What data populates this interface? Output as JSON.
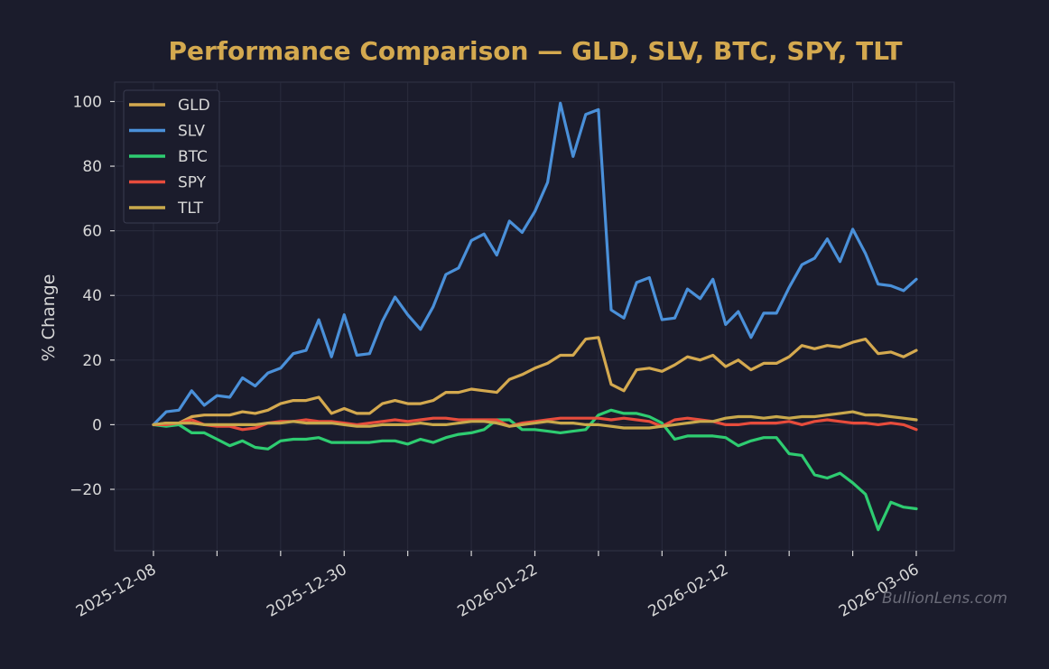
{
  "watermark": "BullionLens.com",
  "chart_data": {
    "type": "line",
    "title": "Performance Comparison — GLD, SLV, BTC, SPY, TLT",
    "xlabel": "",
    "ylabel": "% Change",
    "ylim": [
      -39,
      106
    ],
    "yticks": [
      -20,
      0,
      20,
      40,
      60,
      80,
      100
    ],
    "ytick_labels": [
      "−20",
      "0",
      "20",
      "40",
      "60",
      "80",
      "100"
    ],
    "x_tick_labels": [
      "2025-12-08",
      "2025-12-30",
      "2026-01-22",
      "2026-02-12",
      "2026-03-06"
    ],
    "x_tick_positions": [
      0,
      15,
      30,
      45,
      60
    ],
    "x_minor_tick_positions": [
      5,
      10,
      20,
      25,
      35,
      40,
      50,
      55
    ],
    "grid": true,
    "legend_position": "top-left",
    "x_count": 61,
    "series": [
      {
        "name": "GLD",
        "color": "#d4a94f",
        "values": [
          0,
          0.5,
          0.5,
          2.5,
          3,
          3,
          3,
          4,
          3.5,
          4.5,
          6.5,
          7.5,
          7.5,
          8.5,
          3.5,
          5,
          3.5,
          3.5,
          6.5,
          7.5,
          6.5,
          6.5,
          7.5,
          10,
          10,
          11,
          10.5,
          10,
          14,
          15.5,
          17.5,
          19,
          21.5,
          21.5,
          26.5,
          27,
          12.5,
          10.5,
          17,
          17.5,
          16.5,
          18.5,
          21,
          20,
          21.5,
          18,
          20,
          17,
          19,
          19,
          21,
          24.5,
          23.5,
          24.5,
          24,
          25.5,
          26.5,
          22,
          22.5,
          21,
          23
        ]
      },
      {
        "name": "SLV",
        "color": "#4a90d9",
        "values": [
          0,
          4,
          4.5,
          10.5,
          6,
          9,
          8.5,
          14.5,
          12,
          16,
          17.5,
          22,
          23,
          32.5,
          21,
          34,
          21.5,
          22,
          32,
          39.5,
          34,
          29.5,
          36.5,
          46.5,
          48.5,
          57,
          59,
          52.5,
          63,
          59.5,
          66,
          75,
          99.5,
          83,
          96,
          97.5,
          35.5,
          33,
          44,
          45.5,
          32.5,
          33,
          42,
          39,
          45,
          31,
          35,
          27,
          34.5,
          34.5,
          42.5,
          49.5,
          51.5,
          57.5,
          50.5,
          60.5,
          53,
          43.5,
          43,
          41.5,
          45
        ]
      },
      {
        "name": "BTC",
        "color": "#2ecc71",
        "values": [
          0,
          -0.5,
          0,
          -2.5,
          -2.5,
          -4.5,
          -6.5,
          -5,
          -7,
          -7.5,
          -5,
          -4.5,
          -4.5,
          -4,
          -5.5,
          -5.5,
          -5.5,
          -5.5,
          -5,
          -5,
          -6,
          -4.5,
          -5.5,
          -4,
          -3,
          -2.5,
          -1.5,
          1.5,
          1.5,
          -1.5,
          -1.5,
          -2,
          -2.5,
          -2,
          -1.5,
          3,
          4.5,
          3.5,
          3.5,
          2.5,
          0.5,
          -4.5,
          -3.5,
          -3.5,
          -3.5,
          -4,
          -6.5,
          -5,
          -4,
          -4,
          -9,
          -9.5,
          -15.5,
          -16.5,
          -15,
          -18,
          -21.5,
          -32.5,
          -24,
          -25.5,
          -26
        ]
      },
      {
        "name": "SPY",
        "color": "#e74c3c",
        "values": [
          0,
          0,
          0.5,
          1.5,
          0,
          -0.5,
          -0.5,
          -1.5,
          -1,
          0.5,
          1,
          1,
          1.5,
          1,
          1,
          0.5,
          0,
          0.5,
          1,
          1.5,
          1,
          1.5,
          2,
          2,
          1.5,
          1.5,
          1.5,
          1.5,
          -0.5,
          0.5,
          1,
          1.5,
          2,
          2,
          2,
          2,
          1.5,
          2,
          1.5,
          1,
          -0.5,
          1.5,
          2,
          1.5,
          1,
          0,
          0,
          0.5,
          0.5,
          0.5,
          1,
          0,
          1,
          1.5,
          1,
          0.5,
          0.5,
          0,
          0.5,
          0,
          -1.5
        ]
      },
      {
        "name": "TLT",
        "color": "#c9a94c",
        "values": [
          0,
          0.5,
          0.5,
          0.5,
          0,
          0,
          0,
          0,
          0,
          0.5,
          0.5,
          1,
          0.5,
          0.5,
          0.5,
          0,
          -0.5,
          -0.5,
          0,
          0,
          0,
          0.5,
          0,
          0,
          0.5,
          1,
          1,
          0.5,
          -0.5,
          0,
          0.5,
          1,
          0.5,
          0.5,
          0,
          0,
          -0.5,
          -1,
          -1,
          -1,
          -0.5,
          0,
          0.5,
          1,
          1,
          2,
          2.5,
          2.5,
          2,
          2.5,
          2,
          2.5,
          2.5,
          3,
          3.5,
          4,
          3,
          3,
          2.5,
          2,
          1.5
        ]
      }
    ]
  }
}
